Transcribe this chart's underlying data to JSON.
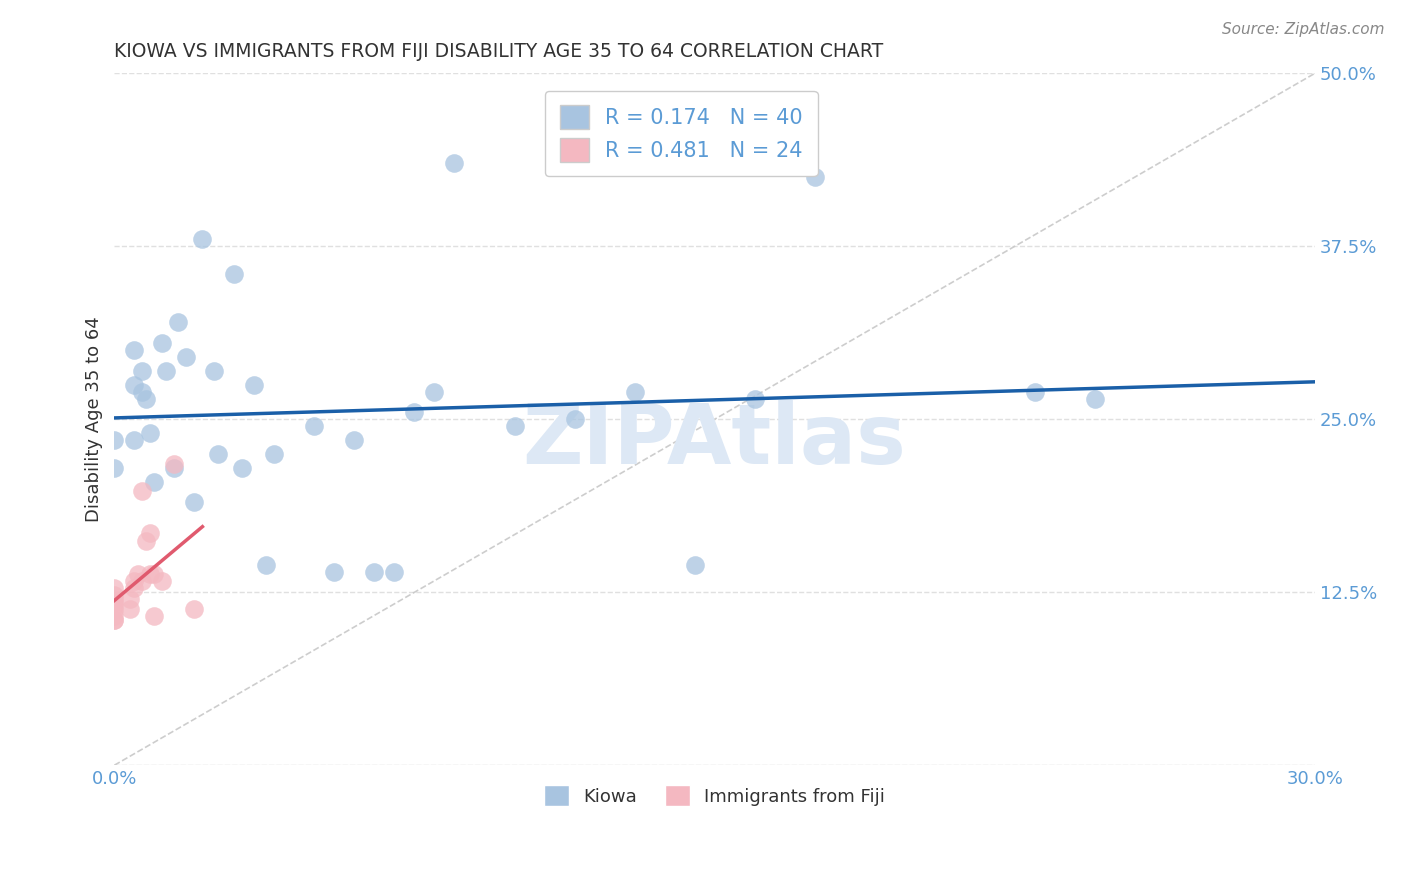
{
  "title": "KIOWA VS IMMIGRANTS FROM FIJI DISABILITY AGE 35 TO 64 CORRELATION CHART",
  "source": "Source: ZipAtlas.com",
  "ylabel": "Disability Age 35 to 64",
  "x_min": 0.0,
  "x_max": 0.3,
  "y_min": 0.0,
  "y_max": 0.5,
  "x_ticks": [
    0.0,
    0.05,
    0.1,
    0.15,
    0.2,
    0.25,
    0.3
  ],
  "x_tick_labels": [
    "0.0%",
    "",
    "",
    "",
    "",
    "",
    "30.0%"
  ],
  "y_ticks": [
    0.0,
    0.125,
    0.25,
    0.375,
    0.5
  ],
  "y_tick_labels": [
    "",
    "12.5%",
    "25.0%",
    "37.5%",
    "50.0%"
  ],
  "kiowa_R": 0.174,
  "kiowa_N": 40,
  "fiji_R": 0.481,
  "fiji_N": 24,
  "kiowa_color": "#a8c4e0",
  "fiji_color": "#f4b8c1",
  "kiowa_line_color": "#1a5fa8",
  "fiji_line_color": "#e05a6e",
  "diagonal_color": "#c8c8c8",
  "kiowa_points_x": [
    0.0,
    0.0,
    0.005,
    0.005,
    0.005,
    0.007,
    0.007,
    0.008,
    0.009,
    0.01,
    0.012,
    0.013,
    0.015,
    0.016,
    0.018,
    0.02,
    0.022,
    0.025,
    0.026,
    0.03,
    0.032,
    0.035,
    0.038,
    0.04,
    0.05,
    0.055,
    0.06,
    0.065,
    0.07,
    0.075,
    0.08,
    0.085,
    0.1,
    0.115,
    0.13,
    0.145,
    0.16,
    0.175,
    0.23,
    0.245
  ],
  "kiowa_points_y": [
    0.235,
    0.215,
    0.3,
    0.275,
    0.235,
    0.285,
    0.27,
    0.265,
    0.24,
    0.205,
    0.305,
    0.285,
    0.215,
    0.32,
    0.295,
    0.19,
    0.38,
    0.285,
    0.225,
    0.355,
    0.215,
    0.275,
    0.145,
    0.225,
    0.245,
    0.14,
    0.235,
    0.14,
    0.14,
    0.255,
    0.27,
    0.435,
    0.245,
    0.25,
    0.27,
    0.145,
    0.265,
    0.425,
    0.27,
    0.265
  ],
  "fiji_points_x": [
    0.0,
    0.0,
    0.0,
    0.0,
    0.0,
    0.0,
    0.0,
    0.0,
    0.0,
    0.004,
    0.004,
    0.005,
    0.005,
    0.006,
    0.007,
    0.007,
    0.008,
    0.009,
    0.009,
    0.01,
    0.01,
    0.012,
    0.015,
    0.02
  ],
  "fiji_points_y": [
    0.105,
    0.105,
    0.108,
    0.112,
    0.115,
    0.118,
    0.12,
    0.123,
    0.128,
    0.113,
    0.12,
    0.128,
    0.133,
    0.138,
    0.133,
    0.198,
    0.162,
    0.138,
    0.168,
    0.138,
    0.108,
    0.133,
    0.218,
    0.113
  ],
  "background_color": "#ffffff",
  "grid_color": "#e0e0e0",
  "tick_color": "#5b9bd5",
  "text_color": "#333333",
  "watermark_text": "ZIPAtlas",
  "watermark_color": "#dde8f5",
  "legend_text_color": "#5b9bd5"
}
